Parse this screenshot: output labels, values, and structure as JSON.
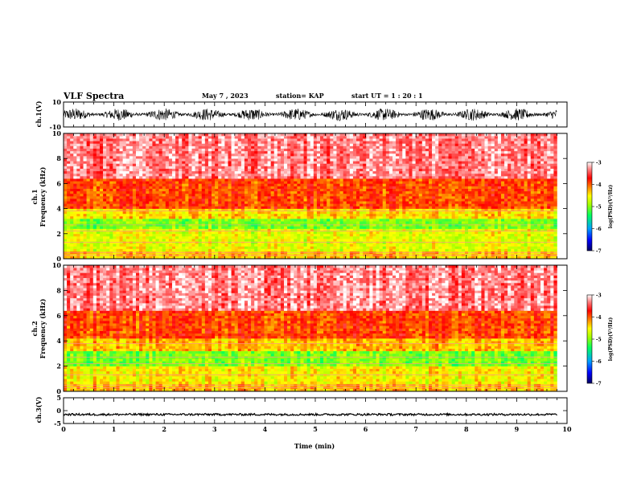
{
  "header": {
    "title": "VLF Spectra",
    "date": "May 7 , 2023",
    "station": "station= KAP",
    "start": "start  UT =   1 : 20 : 1"
  },
  "chart_data": [
    {
      "type": "line",
      "panel": "ch.1(V)",
      "ylabel": "ch.1(V)",
      "ylim": [
        -10,
        10
      ],
      "yticks": [
        "10",
        "-10"
      ],
      "xlim": [
        0,
        10
      ],
      "description_values": {
        "mean": 0,
        "amplitude_approx": 5
      }
    },
    {
      "type": "heatmap",
      "panel": "ch.1",
      "ylabel_line1": "ch.1",
      "ylabel_line2": "Frequency  (kHz)",
      "ylim": [
        0,
        10
      ],
      "yticks": [
        "0",
        "2",
        "4",
        "6",
        "8",
        "10"
      ],
      "xlim": [
        0,
        9.8
      ],
      "bands_khz": [
        {
          "from": 0,
          "to": 0.6,
          "level": -4.3
        },
        {
          "from": 0.6,
          "to": 2.4,
          "level": -4.6
        },
        {
          "from": 2.4,
          "to": 3.3,
          "level": -5.0
        },
        {
          "from": 3.3,
          "to": 4.0,
          "level": -4.4
        },
        {
          "from": 4.0,
          "to": 6.5,
          "level": -3.9
        },
        {
          "from": 6.5,
          "to": 10,
          "level": -3.3
        }
      ],
      "colorbar": {
        "label": "log(PSD)(V²/Hz)",
        "ticks": [
          "-3",
          "-4",
          "-5",
          "-6",
          "-7"
        ],
        "range": [
          -7,
          -3
        ]
      }
    },
    {
      "type": "heatmap",
      "panel": "ch.2",
      "ylabel_line1": "ch.2",
      "ylabel_line2": "Frequency  (kHz)",
      "ylim": [
        0,
        10
      ],
      "yticks": [
        "0",
        "2",
        "4",
        "6",
        "8",
        "10"
      ],
      "xlim": [
        0,
        9.8
      ],
      "bands_khz": [
        {
          "from": 0,
          "to": 0.7,
          "level": -4.3
        },
        {
          "from": 0.7,
          "to": 2.0,
          "level": -4.5
        },
        {
          "from": 2.0,
          "to": 3.2,
          "level": -5.0
        },
        {
          "from": 3.2,
          "to": 4.2,
          "level": -4.3
        },
        {
          "from": 4.2,
          "to": 6.5,
          "level": -3.9
        },
        {
          "from": 6.5,
          "to": 10,
          "level": -3.3
        }
      ],
      "colorbar": {
        "label": "log(PSD)(V²/Hz)",
        "ticks": [
          "-3",
          "-4",
          "-5",
          "-6",
          "-7"
        ],
        "range": [
          -7,
          -3
        ]
      }
    },
    {
      "type": "line",
      "panel": "ch.3(V)",
      "ylabel": "ch.3(V)",
      "ylim": [
        -5,
        5
      ],
      "yticks": [
        "5",
        "0",
        "-5"
      ],
      "xlim": [
        0,
        10
      ],
      "description_values": {
        "mean": -1.5,
        "amplitude_approx": 0.4
      }
    }
  ],
  "xaxis": {
    "label": "Time  (min)",
    "ticks": [
      "0",
      "1",
      "2",
      "3",
      "4",
      "5",
      "6",
      "7",
      "8",
      "9",
      "10"
    ],
    "xlim": [
      0,
      10
    ]
  },
  "colors": {
    "axis": "#000000",
    "colormap": [
      "#000060",
      "#0000ff",
      "#00a0ff",
      "#00ff80",
      "#80ff00",
      "#ffff00",
      "#ff8000",
      "#ff0000",
      "#ffffff"
    ]
  }
}
